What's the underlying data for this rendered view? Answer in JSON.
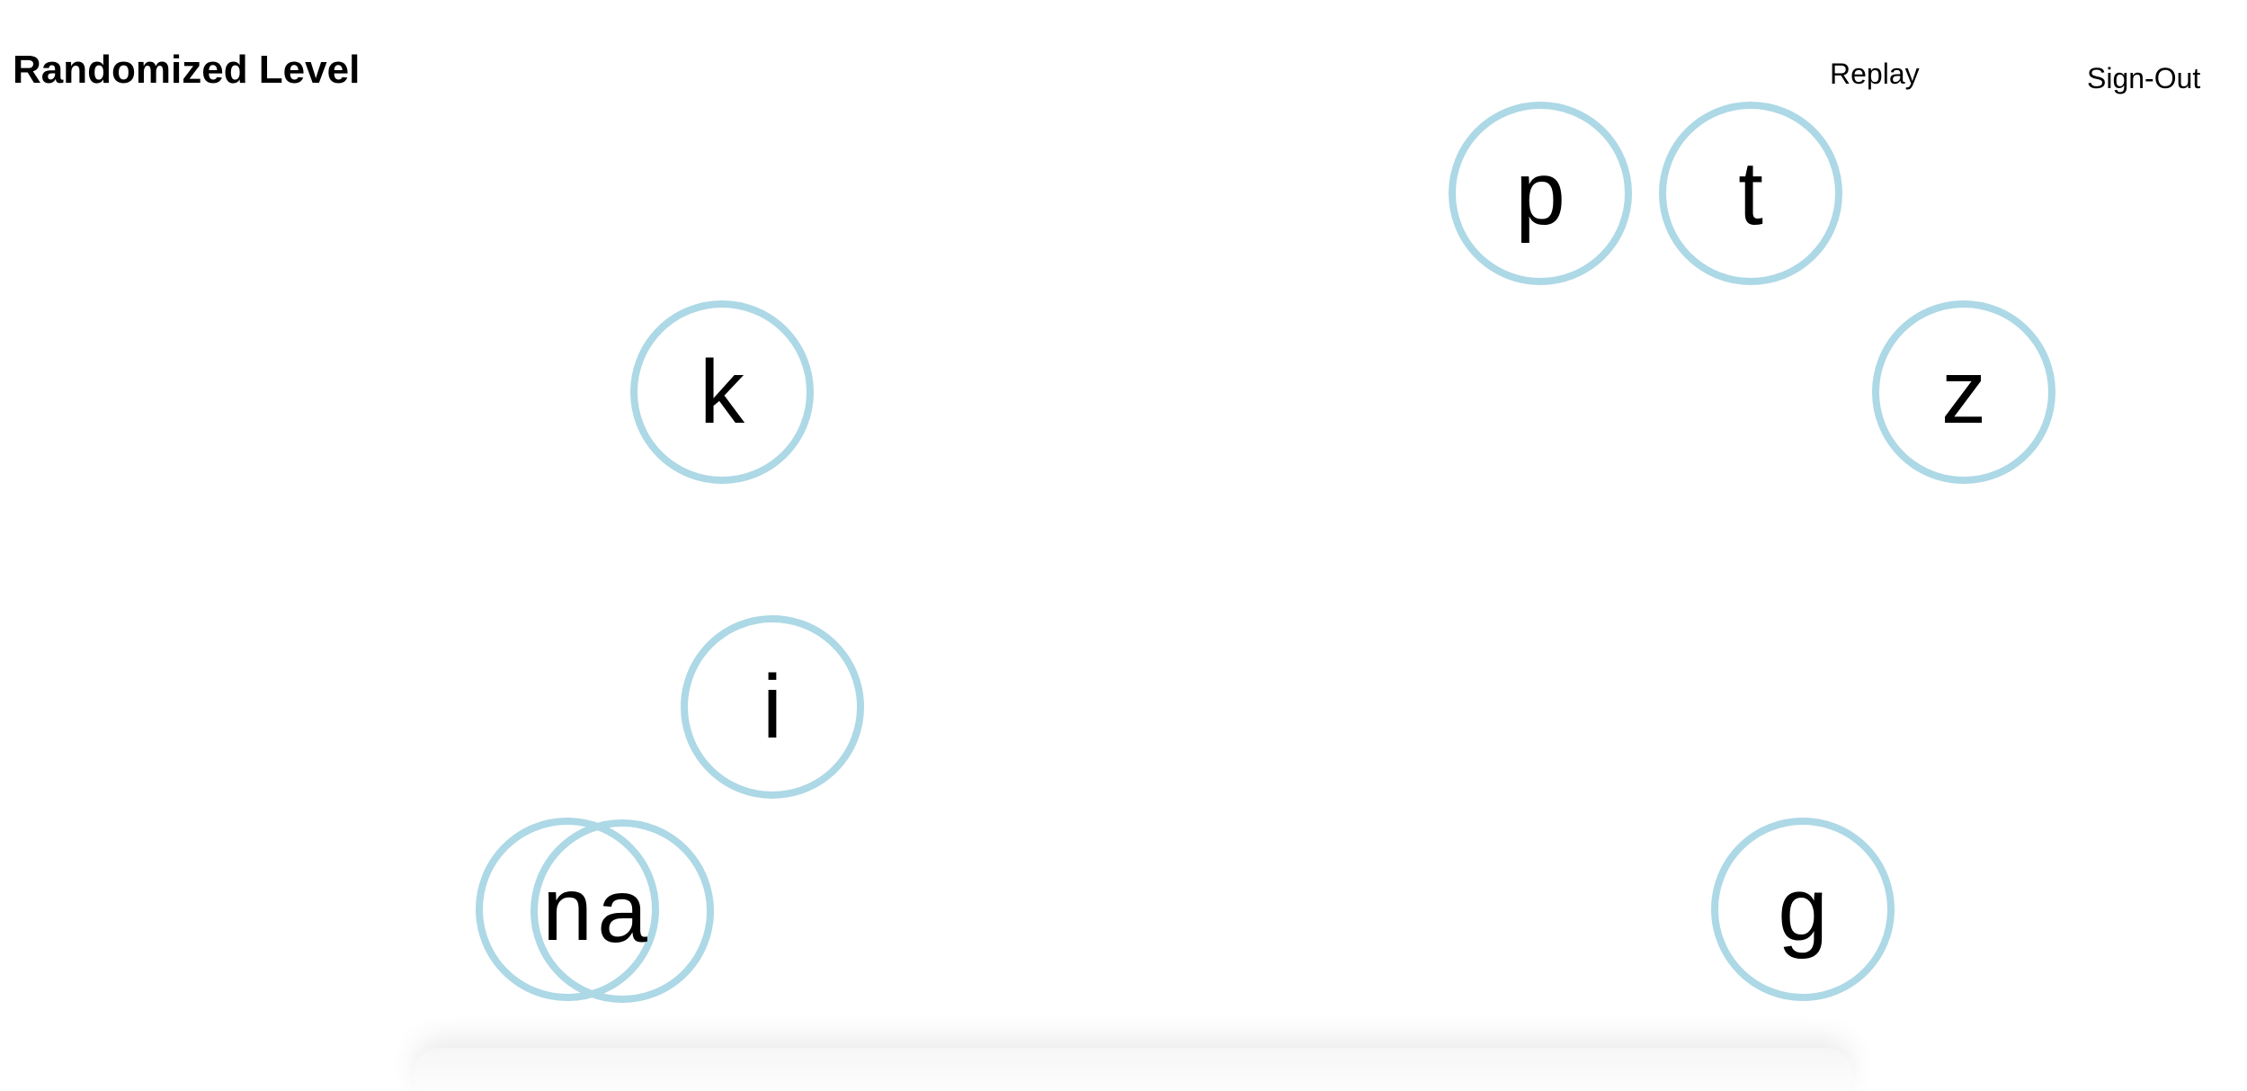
{
  "header": {
    "title": "Randomized Level",
    "replay_label": "Replay",
    "signout_label": "Sign-Out"
  },
  "colors": {
    "bubble_border": "#add8e6",
    "text": "#000000",
    "background": "#ffffff"
  },
  "bubbles": [
    {
      "letter": "p"
    },
    {
      "letter": "t"
    },
    {
      "letter": "k"
    },
    {
      "letter": "z"
    },
    {
      "letter": "i"
    },
    {
      "letter": "n"
    },
    {
      "letter": "a"
    },
    {
      "letter": "g"
    }
  ]
}
